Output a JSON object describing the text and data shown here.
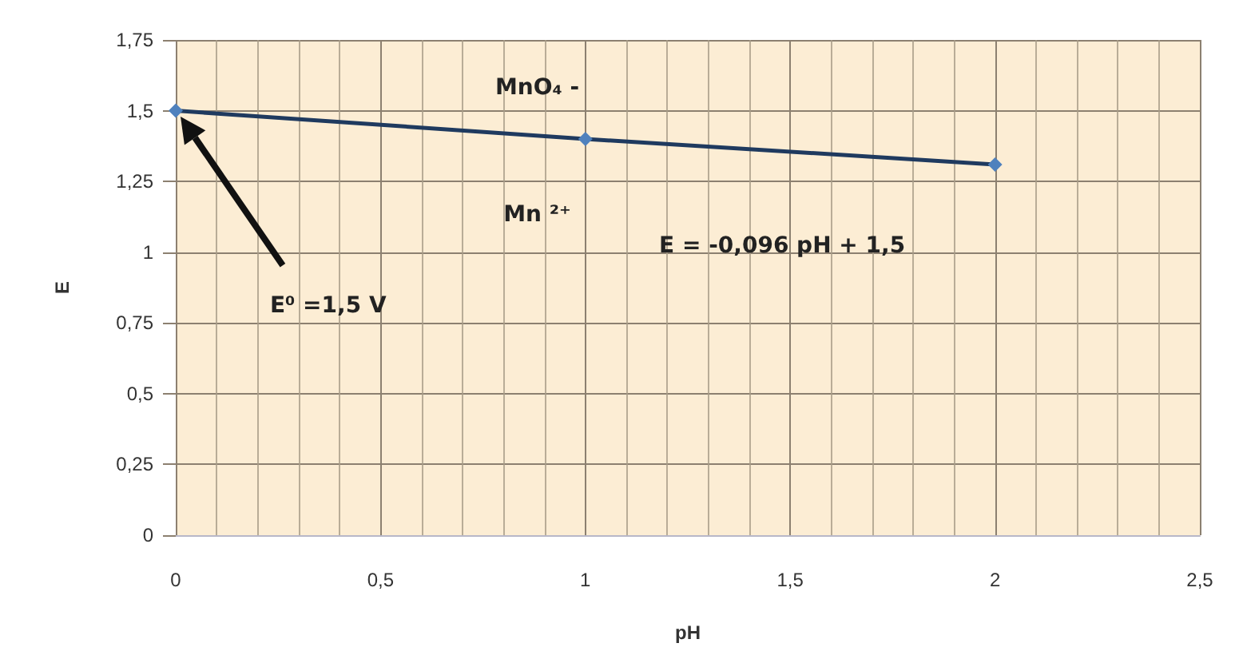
{
  "chart_data": {
    "type": "line",
    "xlabel": "pH",
    "ylabel": "E",
    "x": [
      0,
      1,
      2
    ],
    "series": [
      {
        "color": "#1f3a5f",
        "values": [
          1.5,
          1.4,
          1.31
        ]
      }
    ],
    "xlim": [
      0,
      2.5
    ],
    "xticks": [
      0,
      {
        "value": 0.5,
        "label": "0,5"
      },
      1,
      {
        "value": 1.5,
        "label": "1,5"
      },
      2,
      {
        "value": 2.5,
        "label": "2,5"
      }
    ],
    "ylim": [
      0,
      1.75
    ],
    "yticks": [
      0,
      {
        "value": 0.25,
        "label": "0,25"
      },
      {
        "value": 0.5,
        "label": "0,5"
      },
      {
        "value": 0.75,
        "label": "0,75"
      },
      1,
      {
        "value": 1.25,
        "label": "1,25"
      },
      {
        "value": 1.5,
        "label": "1,5"
      },
      {
        "value": 1.75,
        "label": "1,75"
      }
    ],
    "annotations": [
      "MnO₄ -",
      "Mn ²⁺",
      "E = -0,096 pH + 1,5",
      "E⁰ =1,5 V"
    ],
    "grid": true,
    "marker": "diamond",
    "line_style": "solid"
  }
}
